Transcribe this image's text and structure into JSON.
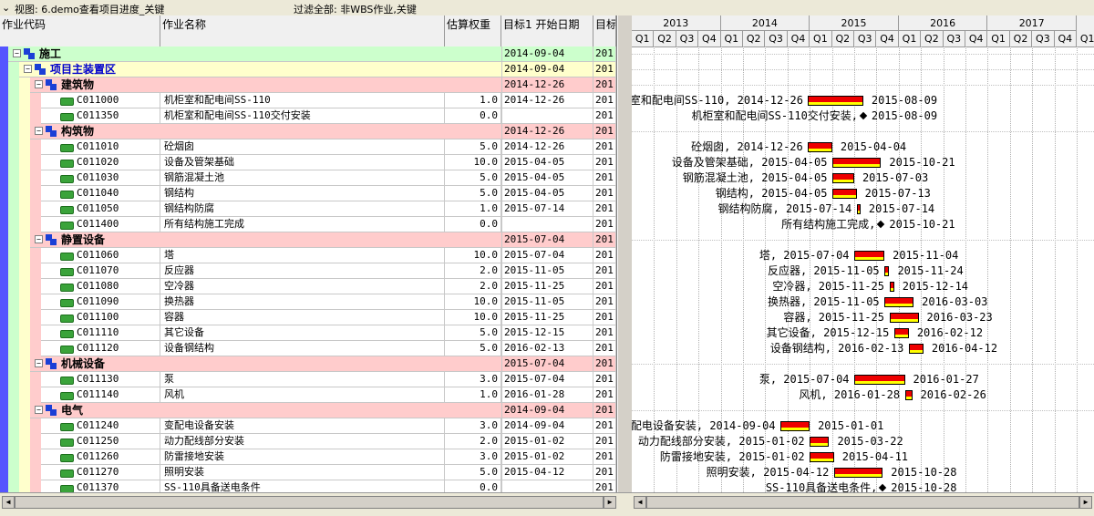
{
  "toolbar": {
    "view_label": "视图: 6.demo查看项目进度_关键",
    "filter_label": "过滤全部:  非WBS作业,关键"
  },
  "columns": {
    "code": "作业代码",
    "name": "作业名称",
    "weight": "估算权重",
    "start": "目标1 开始日期",
    "target": "目标"
  },
  "gantt": {
    "years": [
      "2013",
      "2014",
      "2015",
      "2016",
      "2017"
    ],
    "quarters": [
      "Q1",
      "Q2",
      "Q3",
      "Q4",
      "Q1",
      "Q2",
      "Q3",
      "Q4",
      "Q1",
      "Q2",
      "Q3",
      "Q4",
      "Q1",
      "Q2",
      "Q3",
      "Q4",
      "Q1",
      "Q2",
      "Q3",
      "Q4",
      "Q1"
    ]
  },
  "rows": [
    {
      "type": "wbs",
      "level": 0,
      "name": "施工",
      "start": "2014-09-04",
      "tgt": "201"
    },
    {
      "type": "wbs",
      "level": 1,
      "name": "项目主装置区",
      "start": "2014-09-04",
      "tgt": "201"
    },
    {
      "type": "wbs",
      "level": 2,
      "name": "建筑物",
      "start": "2014-12-26",
      "tgt": "201"
    },
    {
      "type": "act",
      "code": "C011000",
      "name": "机柜室和配电间SS-110",
      "weight": "1.0",
      "start": "2014-12-26",
      "tgt": "201",
      "glabel": "室和配电间SS-110, 2014-12-26",
      "gend": "2015-08-09",
      "s": "2014-12-26",
      "e": "2015-08-09"
    },
    {
      "type": "act",
      "code": "C011350",
      "name": "机柜室和配电间SS-110交付安装",
      "weight": "0.0",
      "start": "",
      "tgt": "201",
      "glabel": "机柜室和配电间SS-110交付安装,",
      "gend": "2015-08-09",
      "ms": "2015-08-09"
    },
    {
      "type": "wbs",
      "level": 2,
      "name": "构筑物",
      "start": "2014-12-26",
      "tgt": "201"
    },
    {
      "type": "act",
      "code": "C011010",
      "name": "砼烟囱",
      "weight": "5.0",
      "start": "2014-12-26",
      "tgt": "201",
      "glabel": "砼烟囱, 2014-12-26",
      "gend": "2015-04-04",
      "s": "2014-12-26",
      "e": "2015-04-04"
    },
    {
      "type": "act",
      "code": "C011020",
      "name": "设备及管架基础",
      "weight": "10.0",
      "start": "2015-04-05",
      "tgt": "201",
      "glabel": "设备及管架基础, 2015-04-05",
      "gend": "2015-10-21",
      "s": "2015-04-05",
      "e": "2015-10-21"
    },
    {
      "type": "act",
      "code": "C011030",
      "name": "钢筋混凝土池",
      "weight": "5.0",
      "start": "2015-04-05",
      "tgt": "201",
      "glabel": "钢筋混凝土池, 2015-04-05",
      "gend": "2015-07-03",
      "s": "2015-04-05",
      "e": "2015-07-03"
    },
    {
      "type": "act",
      "code": "C011040",
      "name": "钢结构",
      "weight": "5.0",
      "start": "2015-04-05",
      "tgt": "201",
      "glabel": "钢结构, 2015-04-05",
      "gend": "2015-07-13",
      "s": "2015-04-05",
      "e": "2015-07-13"
    },
    {
      "type": "act",
      "code": "C011050",
      "name": "钢结构防腐",
      "weight": "1.0",
      "start": "2015-07-14",
      "tgt": "201",
      "glabel": "钢结构防腐, 2015-07-14",
      "gend": "2015-07-14",
      "s": "2015-07-14",
      "e": "2015-07-14"
    },
    {
      "type": "act",
      "code": "C011400",
      "name": "所有结构施工完成",
      "weight": "0.0",
      "start": "",
      "tgt": "201",
      "glabel": "所有结构施工完成,",
      "gend": "2015-10-21",
      "ms": "2015-10-21"
    },
    {
      "type": "wbs",
      "level": 2,
      "name": "静置设备",
      "start": "2015-07-04",
      "tgt": "201"
    },
    {
      "type": "act",
      "code": "C011060",
      "name": "塔",
      "weight": "10.0",
      "start": "2015-07-04",
      "tgt": "201",
      "glabel": "塔, 2015-07-04",
      "gend": "2015-11-04",
      "s": "2015-07-04",
      "e": "2015-11-04"
    },
    {
      "type": "act",
      "code": "C011070",
      "name": "反应器",
      "weight": "2.0",
      "start": "2015-11-05",
      "tgt": "201",
      "glabel": "反应器, 2015-11-05",
      "gend": "2015-11-24",
      "s": "2015-11-05",
      "e": "2015-11-24"
    },
    {
      "type": "act",
      "code": "C011080",
      "name": "空冷器",
      "weight": "2.0",
      "start": "2015-11-25",
      "tgt": "201",
      "glabel": "空冷器, 2015-11-25",
      "gend": "2015-12-14",
      "s": "2015-11-25",
      "e": "2015-12-14"
    },
    {
      "type": "act",
      "code": "C011090",
      "name": "换热器",
      "weight": "10.0",
      "start": "2015-11-05",
      "tgt": "201",
      "glabel": "换热器, 2015-11-05",
      "gend": "2016-03-03",
      "s": "2015-11-05",
      "e": "2016-03-03"
    },
    {
      "type": "act",
      "code": "C011100",
      "name": "容器",
      "weight": "10.0",
      "start": "2015-11-25",
      "tgt": "201",
      "glabel": "容器, 2015-11-25",
      "gend": "2016-03-23",
      "s": "2015-11-25",
      "e": "2016-03-23"
    },
    {
      "type": "act",
      "code": "C011110",
      "name": "其它设备",
      "weight": "5.0",
      "start": "2015-12-15",
      "tgt": "201",
      "glabel": "其它设备, 2015-12-15",
      "gend": "2016-02-12",
      "s": "2015-12-15",
      "e": "2016-02-12"
    },
    {
      "type": "act",
      "code": "C011120",
      "name": "设备钢结构",
      "weight": "5.0",
      "start": "2016-02-13",
      "tgt": "201",
      "glabel": "设备钢结构, 2016-02-13",
      "gend": "2016-04-12",
      "s": "2016-02-13",
      "e": "2016-04-12"
    },
    {
      "type": "wbs",
      "level": 2,
      "name": "机械设备",
      "start": "2015-07-04",
      "tgt": "201"
    },
    {
      "type": "act",
      "code": "C011130",
      "name": "泵",
      "weight": "3.0",
      "start": "2015-07-04",
      "tgt": "201",
      "glabel": "泵, 2015-07-04",
      "gend": "2016-01-27",
      "s": "2015-07-04",
      "e": "2016-01-27"
    },
    {
      "type": "act",
      "code": "C011140",
      "name": "风机",
      "weight": "1.0",
      "start": "2016-01-28",
      "tgt": "201",
      "glabel": "风机, 2016-01-28",
      "gend": "2016-02-26",
      "s": "2016-01-28",
      "e": "2016-02-26"
    },
    {
      "type": "wbs",
      "level": 2,
      "name": "电气",
      "start": "2014-09-04",
      "tgt": "201"
    },
    {
      "type": "act",
      "code": "C011240",
      "name": "变配电设备安装",
      "weight": "3.0",
      "start": "2014-09-04",
      "tgt": "201",
      "glabel": "配电设备安装, 2014-09-04",
      "gend": "2015-01-01",
      "s": "2014-09-04",
      "e": "2015-01-01"
    },
    {
      "type": "act",
      "code": "C011250",
      "name": "动力配线部分安装",
      "weight": "2.0",
      "start": "2015-01-02",
      "tgt": "201",
      "glabel": "动力配线部分安装, 2015-01-02",
      "gend": "2015-03-22",
      "s": "2015-01-02",
      "e": "2015-03-22"
    },
    {
      "type": "act",
      "code": "C011260",
      "name": "防雷接地安装",
      "weight": "3.0",
      "start": "2015-01-02",
      "tgt": "201",
      "glabel": "防雷接地安装, 2015-01-02",
      "gend": "2015-04-11",
      "s": "2015-01-02",
      "e": "2015-04-11"
    },
    {
      "type": "act",
      "code": "C011270",
      "name": "照明安装",
      "weight": "5.0",
      "start": "2015-04-12",
      "tgt": "201",
      "glabel": "照明安装, 2015-04-12",
      "gend": "2015-10-28",
      "s": "2015-04-12",
      "e": "2015-10-28"
    },
    {
      "type": "act",
      "code": "C011370",
      "name": "SS-110具备送电条件",
      "weight": "0.0",
      "start": "",
      "tgt": "201",
      "glabel": "SS-110具备送电条件,",
      "gend": "2015-10-28",
      "ms": "2015-10-28"
    }
  ]
}
